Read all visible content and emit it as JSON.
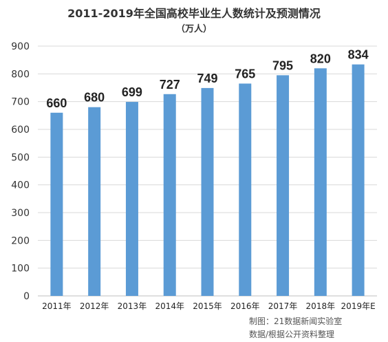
{
  "chart_data": {
    "type": "bar",
    "title": "2011-2019年全国高校毕业生人数统计及预测情况",
    "subtitle": "（万人）",
    "categories": [
      "2011年",
      "2012年",
      "2013年",
      "2014年",
      "2015年",
      "2016年",
      "2017年",
      "2018年",
      "2019年E"
    ],
    "values": [
      660,
      680,
      699,
      727,
      749,
      765,
      795,
      820,
      834
    ],
    "data_labels": [
      "660",
      "680",
      "699",
      "727",
      "749",
      "765",
      "795",
      "820",
      "834"
    ],
    "ylim": [
      0,
      900
    ],
    "yticks": [
      0,
      100,
      200,
      300,
      400,
      500,
      600,
      700,
      800,
      900
    ],
    "ytick_labels": [
      "0",
      "100",
      "200",
      "300",
      "400",
      "500",
      "600",
      "700",
      "800",
      "900"
    ],
    "xlabel": "",
    "ylabel": "",
    "grid": true,
    "legend": "none",
    "bar_color": "#5B9BD5",
    "grid_color": "#D9D9D9",
    "credits": [
      "制图：21数据新闻实验室",
      "数据/根据公开资料整理"
    ]
  }
}
